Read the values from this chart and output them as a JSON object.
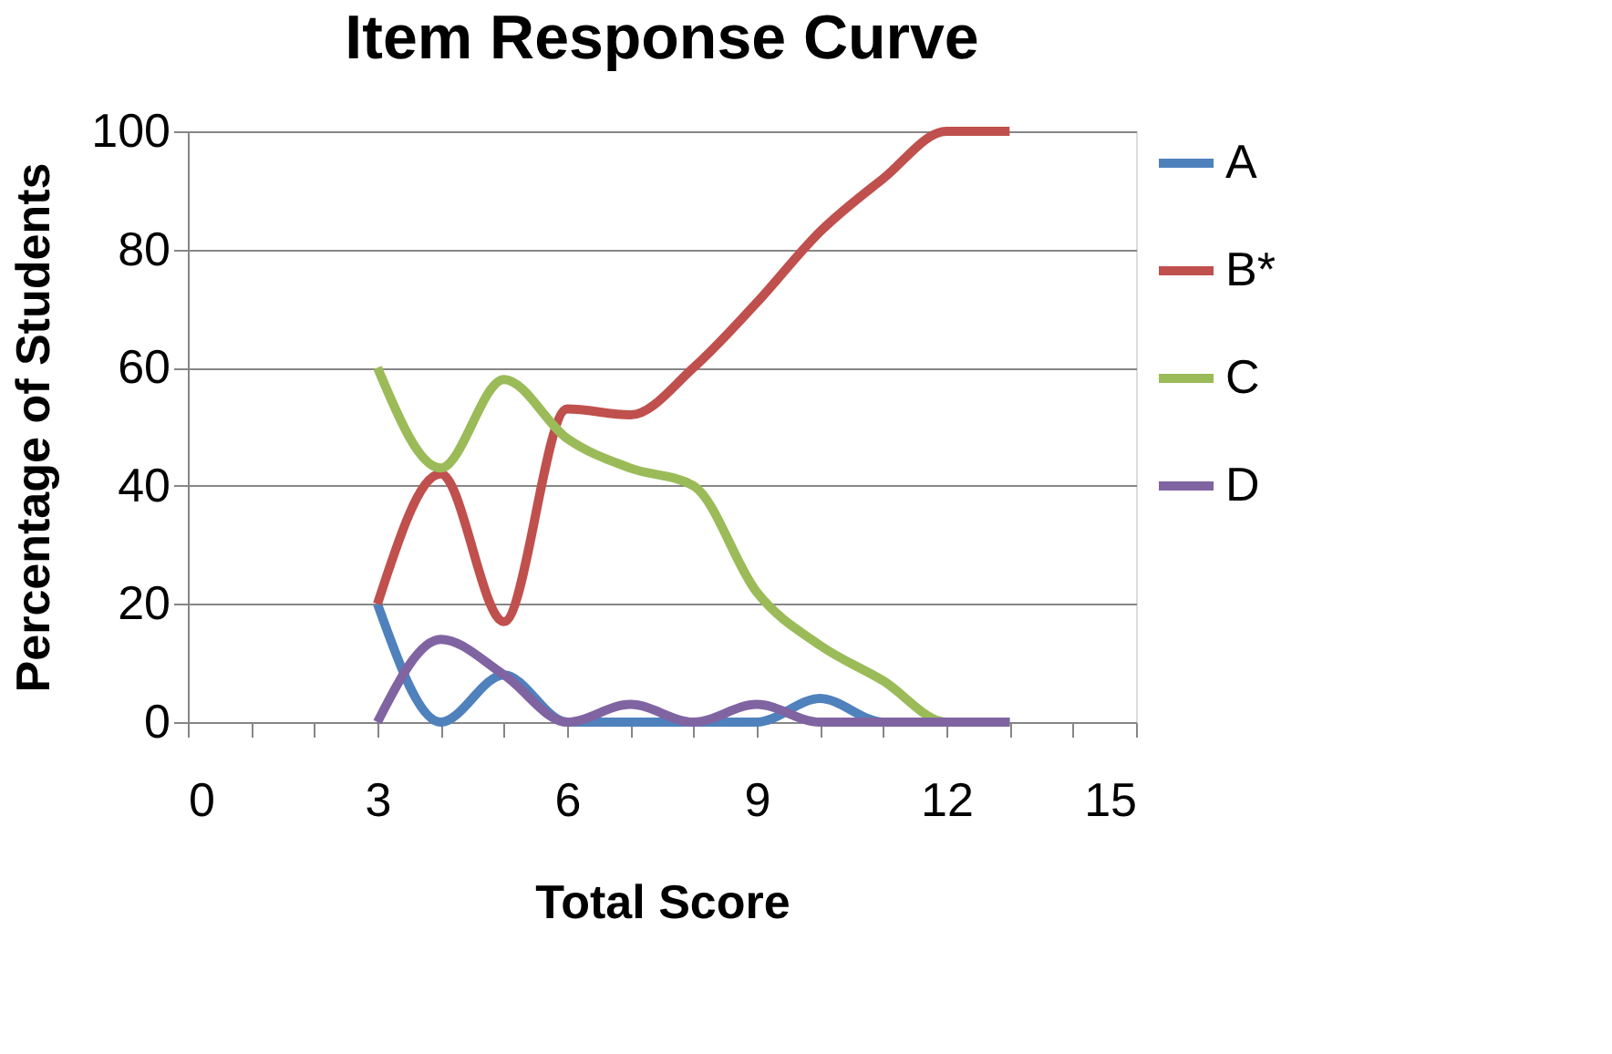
{
  "chart_data": {
    "type": "line",
    "title": "Item Response Curve",
    "xlabel": "Total Score",
    "ylabel": "Percentage of Students",
    "x": [
      3,
      4,
      5,
      6,
      7,
      8,
      9,
      10,
      11,
      12,
      13
    ],
    "series": [
      {
        "name": "A",
        "color": "#4f81bd",
        "values": [
          20,
          0,
          8,
          0,
          0,
          0,
          0,
          4,
          0,
          0,
          0
        ]
      },
      {
        "name": "B*",
        "color": "#c0504d",
        "values": [
          20,
          42,
          17,
          53,
          52,
          60,
          71,
          83,
          92,
          100,
          100
        ]
      },
      {
        "name": "C",
        "color": "#9bbb59",
        "values": [
          60,
          43,
          58,
          48,
          43,
          40,
          22,
          13,
          7,
          0,
          0
        ]
      },
      {
        "name": "D",
        "color": "#8064a2",
        "values": [
          0,
          14,
          8,
          0,
          3,
          0,
          3,
          0,
          0,
          0,
          0
        ]
      }
    ],
    "xlim": [
      0,
      15
    ],
    "xticks": [
      0,
      {
        "value": 1,
        "label": null
      },
      {
        "value": 2,
        "label": null
      },
      3,
      {
        "value": 4,
        "label": null
      },
      {
        "value": 5,
        "label": null
      },
      6,
      {
        "value": 7,
        "label": null
      },
      {
        "value": 8,
        "label": null
      },
      9,
      {
        "value": 10,
        "label": null
      },
      {
        "value": 11,
        "label": null
      },
      12,
      {
        "value": 13,
        "label": null
      },
      {
        "value": 14,
        "label": null
      },
      15
    ],
    "ylim": [
      0,
      100
    ],
    "yticks": [
      0,
      20,
      40,
      60,
      80,
      100
    ],
    "grid": "y",
    "legend": "right",
    "marker": "none",
    "line_style": "solid"
  }
}
